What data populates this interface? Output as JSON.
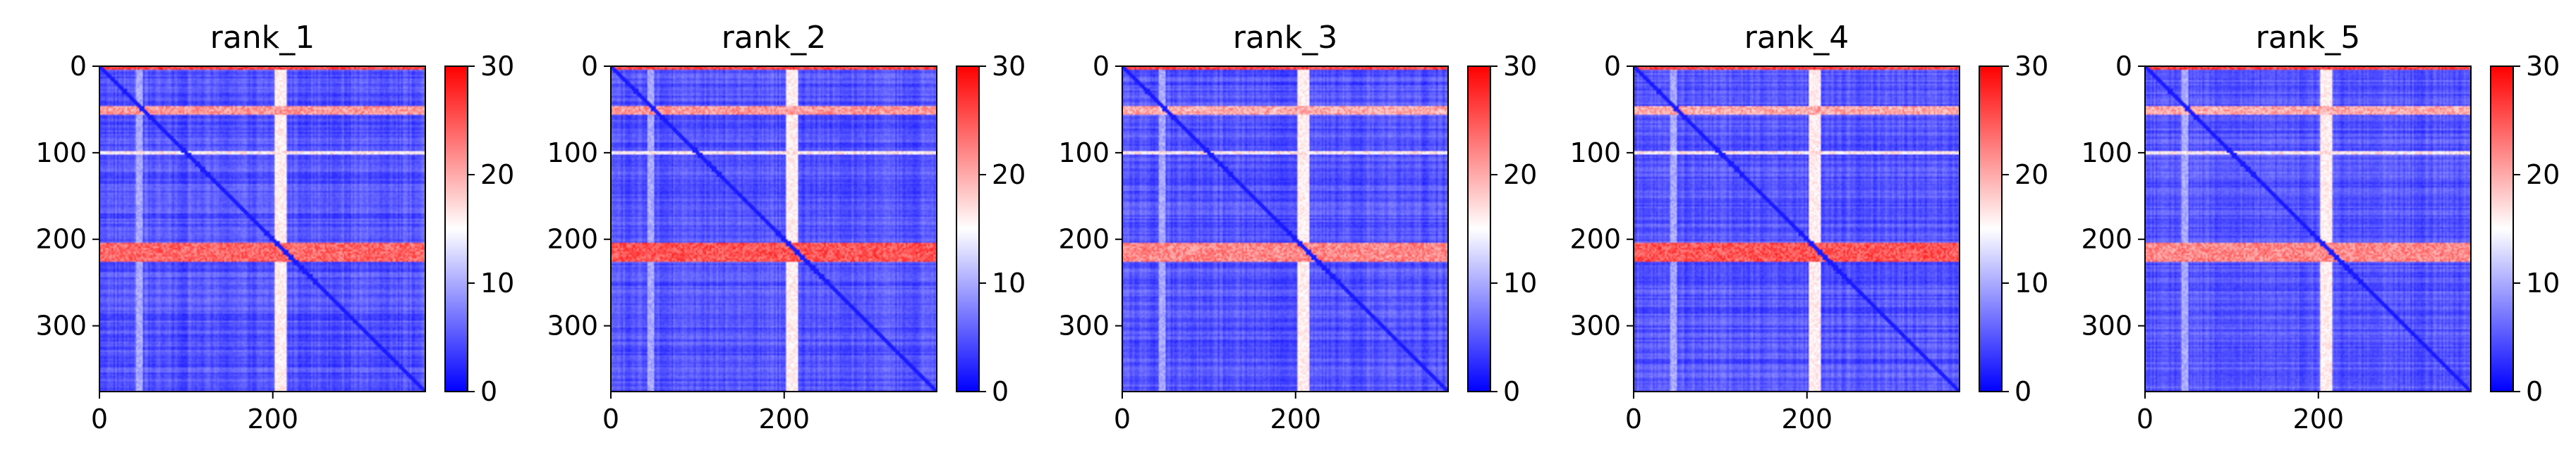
{
  "chart_data": [
    {
      "type": "heatmap",
      "title": "rank_1",
      "xlim": [
        0,
        376
      ],
      "ylim": [
        376,
        0
      ],
      "xticks": [
        0,
        200
      ],
      "yticks": [
        0,
        100,
        200,
        300
      ],
      "colorbar": {
        "min": 0,
        "max": 30,
        "ticks": [
          0,
          10,
          20,
          30
        ],
        "colors": [
          "#0000ff",
          "#ffffff",
          "#ff0000"
        ]
      },
      "background_value": 5,
      "high_rows": [
        [
          0,
          4,
          26
        ],
        [
          47,
          55,
          21
        ],
        [
          98,
          101,
          16
        ],
        [
          205,
          226,
          24
        ]
      ],
      "high_cols": [
        [
          203,
          216,
          16
        ],
        [
          42,
          50,
          10
        ]
      ]
    },
    {
      "type": "heatmap",
      "title": "rank_2",
      "xlim": [
        0,
        376
      ],
      "ylim": [
        376,
        0
      ],
      "xticks": [
        0,
        200
      ],
      "yticks": [
        0,
        100,
        200,
        300
      ],
      "colorbar": {
        "min": 0,
        "max": 30,
        "ticks": [
          0,
          10,
          20,
          30
        ],
        "colors": [
          "#0000ff",
          "#ffffff",
          "#ff0000"
        ]
      },
      "background_value": 5,
      "high_rows": [
        [
          0,
          4,
          26
        ],
        [
          47,
          55,
          21
        ],
        [
          98,
          101,
          16
        ],
        [
          205,
          226,
          25
        ]
      ],
      "high_cols": [
        [
          203,
          216,
          16
        ],
        [
          42,
          50,
          10
        ]
      ]
    },
    {
      "type": "heatmap",
      "title": "rank_3",
      "xlim": [
        0,
        376
      ],
      "ylim": [
        376,
        0
      ],
      "xticks": [
        0,
        200
      ],
      "yticks": [
        0,
        100,
        200,
        300
      ],
      "colorbar": {
        "min": 0,
        "max": 30,
        "ticks": [
          0,
          10,
          20,
          30
        ],
        "colors": [
          "#0000ff",
          "#ffffff",
          "#ff0000"
        ]
      },
      "background_value": 5,
      "high_rows": [
        [
          0,
          4,
          26
        ],
        [
          47,
          55,
          20
        ],
        [
          98,
          101,
          16
        ],
        [
          205,
          226,
          22
        ]
      ],
      "high_cols": [
        [
          203,
          216,
          16
        ],
        [
          42,
          50,
          10
        ]
      ]
    },
    {
      "type": "heatmap",
      "title": "rank_4",
      "xlim": [
        0,
        376
      ],
      "ylim": [
        376,
        0
      ],
      "xticks": [
        0,
        200
      ],
      "yticks": [
        0,
        100,
        200,
        300
      ],
      "colorbar": {
        "min": 0,
        "max": 30,
        "ticks": [
          0,
          10,
          20,
          30
        ],
        "colors": [
          "#0000ff",
          "#ffffff",
          "#ff0000"
        ]
      },
      "background_value": 5,
      "high_rows": [
        [
          0,
          4,
          26
        ],
        [
          47,
          55,
          20
        ],
        [
          98,
          101,
          16
        ],
        [
          205,
          226,
          25
        ]
      ],
      "high_cols": [
        [
          203,
          216,
          16
        ],
        [
          42,
          50,
          10
        ]
      ]
    },
    {
      "type": "heatmap",
      "title": "rank_5",
      "xlim": [
        0,
        376
      ],
      "ylim": [
        376,
        0
      ],
      "xticks": [
        0,
        200
      ],
      "yticks": [
        0,
        100,
        200,
        300
      ],
      "colorbar": {
        "min": 0,
        "max": 30,
        "ticks": [
          0,
          10,
          20,
          30
        ],
        "colors": [
          "#0000ff",
          "#ffffff",
          "#ff0000"
        ]
      },
      "background_value": 5,
      "high_rows": [
        [
          0,
          4,
          26
        ],
        [
          47,
          55,
          20
        ],
        [
          98,
          101,
          16
        ],
        [
          205,
          226,
          22
        ]
      ],
      "high_cols": [
        [
          203,
          216,
          16
        ],
        [
          42,
          50,
          10
        ]
      ]
    }
  ]
}
